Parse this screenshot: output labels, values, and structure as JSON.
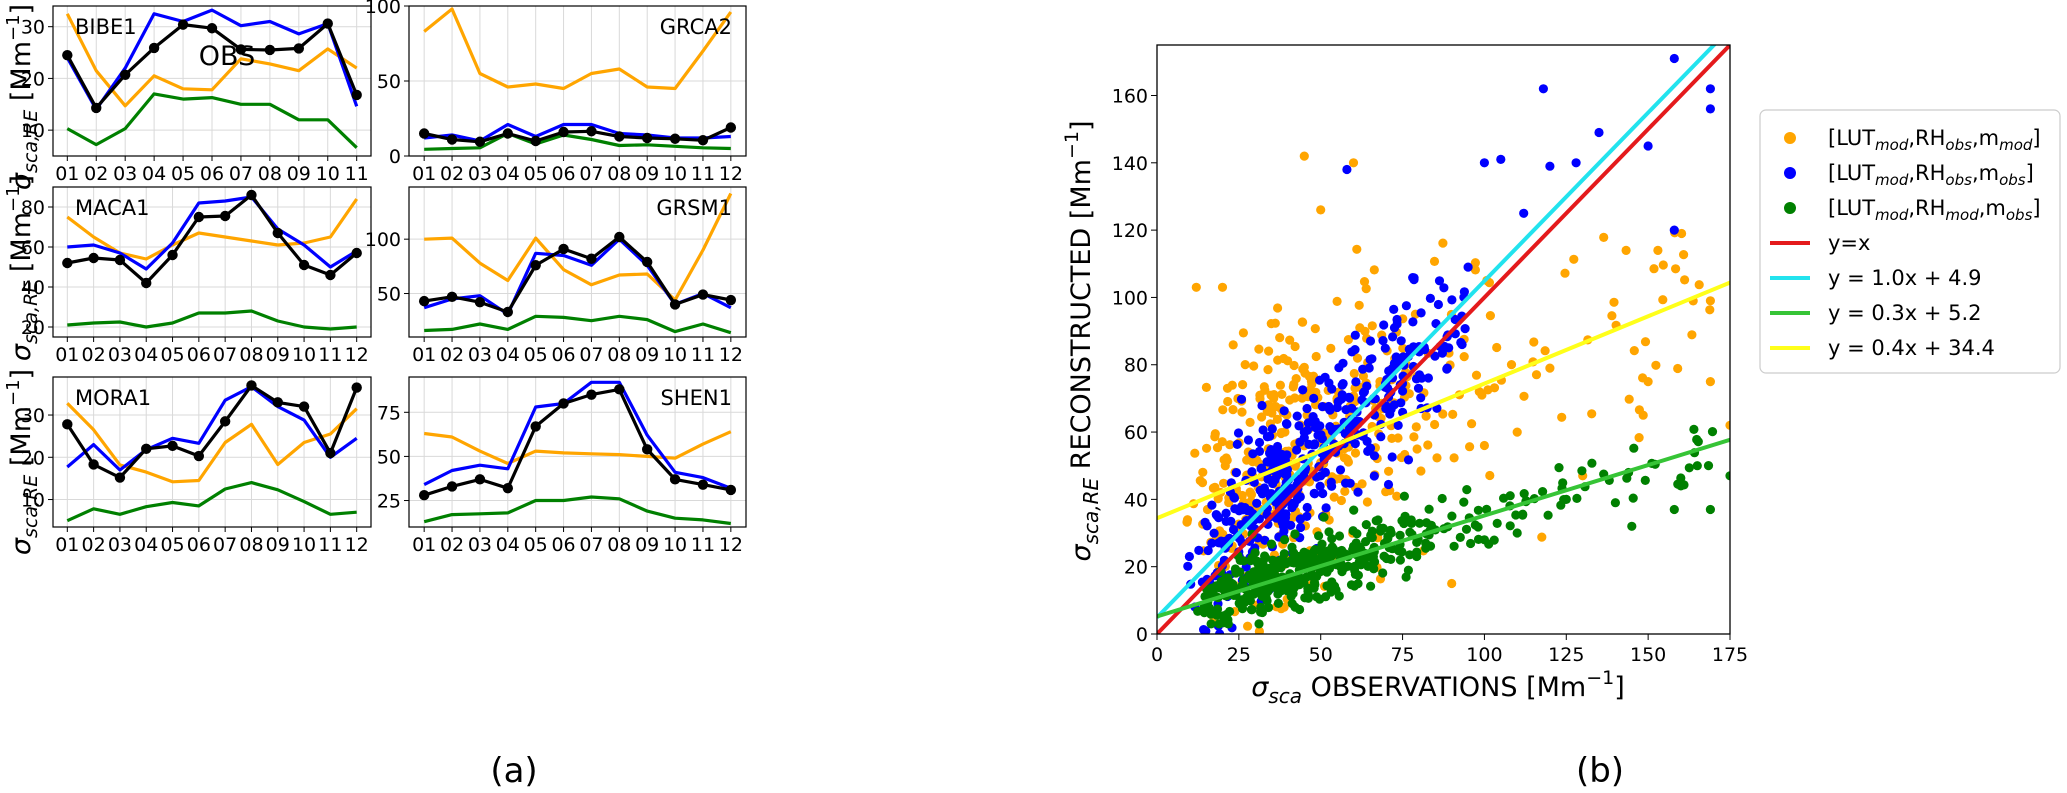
{
  "chart_data": [
    {
      "type": "line",
      "site": "BIBE1",
      "annotation": "OBS",
      "categories": [
        "01",
        "02",
        "03",
        "04",
        "05",
        "06",
        "07",
        "08",
        "09",
        "10",
        "11"
      ],
      "ylim": [
        5,
        34
      ],
      "yticks": [
        10,
        20,
        30
      ],
      "ylabel": "σsca,RE [Mm⁻¹]",
      "series": [
        {
          "name": "[LUTmod,RHobs,mmod]",
          "color": "#ffa500",
          "values": [
            32.5,
            21.5,
            14.7,
            20.5,
            18.0,
            17.8,
            23.8,
            22.8,
            21.5,
            25.7,
            22.0
          ]
        },
        {
          "name": "[LUTmod,RHobs,mobs]",
          "color": "#0000ff",
          "values": [
            24.0,
            14.0,
            22.0,
            32.5,
            31.0,
            33.2,
            30.2,
            31.0,
            28.6,
            30.6,
            14.6
          ]
        },
        {
          "name": "[LUTmod,RHmod,mobs]",
          "color": "#008000",
          "values": [
            10.3,
            7.2,
            10.3,
            17.0,
            16.0,
            16.3,
            15.0,
            15.0,
            12.0,
            12.0,
            6.6
          ]
        },
        {
          "name": "OBS",
          "color": "#000000",
          "values": [
            24.5,
            14.3,
            20.7,
            25.9,
            30.4,
            29.7,
            25.6,
            25.5,
            25.8,
            30.6,
            16.8
          ]
        }
      ]
    },
    {
      "type": "line",
      "site": "GRCA2",
      "categories": [
        "01",
        "02",
        "03",
        "04",
        "05",
        "06",
        "07",
        "08",
        "09",
        "10",
        "11",
        "12"
      ],
      "ylim": [
        0,
        100
      ],
      "yticks": [
        0,
        50,
        100
      ],
      "series": [
        {
          "name": "[LUTmod,RHobs,mmod]",
          "color": "#ffa500",
          "values": [
            83,
            98,
            55,
            46,
            48,
            45,
            55,
            58,
            46,
            45,
            70,
            96
          ]
        },
        {
          "name": "[LUTmod,RHobs,mobs]",
          "color": "#0000ff",
          "values": [
            12,
            14,
            10,
            21,
            13,
            21,
            21,
            15,
            14,
            12,
            12,
            13
          ]
        },
        {
          "name": "[LUTmod,RHmod,mobs]",
          "color": "#008000",
          "values": [
            4.5,
            5,
            5.5,
            15,
            8,
            14,
            11,
            7,
            7.5,
            6.5,
            5.5,
            5
          ]
        },
        {
          "name": "OBS",
          "color": "#000000",
          "values": [
            15,
            11,
            9.5,
            15,
            10,
            16,
            16.5,
            13,
            12,
            11.5,
            10.5,
            19
          ]
        }
      ]
    },
    {
      "type": "line",
      "site": "MACA1",
      "categories": [
        "01",
        "02",
        "03",
        "04",
        "05",
        "06",
        "07",
        "08",
        "09",
        "10",
        "11",
        "12"
      ],
      "ylim": [
        15,
        90
      ],
      "yticks": [
        20,
        40,
        60,
        80
      ],
      "ylabel": "σsca,RE [Mm⁻¹]",
      "series": [
        {
          "name": "[LUTmod,RHobs,mmod]",
          "color": "#ffa500",
          "values": [
            75,
            65,
            57,
            54,
            61,
            67,
            65,
            63,
            61,
            62,
            65,
            84
          ]
        },
        {
          "name": "[LUTmod,RHobs,mobs]",
          "color": "#0000ff",
          "values": [
            60,
            61,
            57,
            49,
            62,
            82,
            83,
            85,
            69,
            61,
            50,
            58
          ]
        },
        {
          "name": "[LUTmod,RHmod,mobs]",
          "color": "#008000",
          "values": [
            21,
            22,
            22.5,
            20,
            22,
            27,
            27,
            28,
            23,
            20,
            19,
            20
          ]
        },
        {
          "name": "OBS",
          "color": "#000000",
          "values": [
            52,
            54.5,
            53.5,
            42,
            56,
            75,
            75.5,
            86,
            67,
            51,
            46,
            57
          ]
        }
      ]
    },
    {
      "type": "line",
      "site": "GRSM1",
      "categories": [
        "01",
        "02",
        "03",
        "04",
        "05",
        "06",
        "07",
        "08",
        "09",
        "10",
        "11",
        "12"
      ],
      "ylim": [
        10,
        148
      ],
      "yticks": [
        50,
        100
      ],
      "series": [
        {
          "name": "[LUTmod,RHobs,mmod]",
          "color": "#ffa500",
          "values": [
            100,
            101,
            78,
            62,
            101,
            72,
            58,
            67,
            68,
            44,
            90,
            142
          ]
        },
        {
          "name": "[LUTmod,RHobs,mobs]",
          "color": "#0000ff",
          "values": [
            37,
            45,
            48,
            31,
            87,
            85,
            76,
            100,
            76,
            40,
            50,
            37
          ]
        },
        {
          "name": "[LUTmod,RHmod,mobs]",
          "color": "#008000",
          "values": [
            16,
            17,
            22,
            17,
            29,
            28,
            25,
            29,
            26,
            15,
            22,
            14
          ]
        },
        {
          "name": "OBS",
          "color": "#000000",
          "values": [
            43,
            47,
            42,
            33,
            76,
            91,
            82,
            102,
            79,
            40,
            49,
            44
          ]
        }
      ]
    },
    {
      "type": "line",
      "site": "MORA1",
      "categories": [
        "01",
        "02",
        "03",
        "04",
        "05",
        "06",
        "07",
        "08",
        "09",
        "10",
        "11",
        "12"
      ],
      "ylim": [
        3.5,
        39
      ],
      "yticks": [
        10,
        20,
        30
      ],
      "ylabel": "σsca,RE [Mm⁻¹]",
      "series": [
        {
          "name": "[LUTmod,RHobs,mmod]",
          "color": "#ffa500",
          "values": [
            32.8,
            26.5,
            18.2,
            16.5,
            14.2,
            14.5,
            23.5,
            27.8,
            18.3,
            23.5,
            25.5,
            31.5
          ]
        },
        {
          "name": "[LUTmod,RHobs,mobs]",
          "color": "#0000ff",
          "values": [
            17.7,
            23.0,
            17.0,
            21.8,
            24.5,
            23.3,
            33.5,
            36.7,
            32.0,
            28.8,
            20.0,
            24.5
          ]
        },
        {
          "name": "[LUTmod,RHmod,mobs]",
          "color": "#008000",
          "values": [
            5.0,
            7.8,
            6.5,
            8.3,
            9.3,
            8.5,
            12.5,
            14.0,
            12.3,
            9.5,
            6.5,
            7.0
          ]
        },
        {
          "name": "OBS",
          "color": "#000000",
          "values": [
            27.8,
            18.3,
            15.2,
            22.0,
            22.7,
            20.3,
            28.5,
            37.0,
            33.0,
            32.0,
            21.0,
            36.5
          ]
        }
      ]
    },
    {
      "type": "line",
      "site": "SHEN1",
      "categories": [
        "01",
        "02",
        "03",
        "04",
        "05",
        "06",
        "07",
        "08",
        "09",
        "10",
        "11",
        "12"
      ],
      "ylim": [
        10,
        95
      ],
      "yticks": [
        25,
        50,
        75
      ],
      "series": [
        {
          "name": "[LUTmod,RHobs,mmod]",
          "color": "#ffa500",
          "values": [
            63,
            61,
            53,
            46,
            53,
            52,
            51.5,
            51,
            50,
            49,
            57,
            64
          ]
        },
        {
          "name": "[LUTmod,RHobs,mobs]",
          "color": "#0000ff",
          "values": [
            34,
            42,
            45,
            43,
            78,
            80,
            92,
            92,
            62,
            41,
            38,
            32
          ]
        },
        {
          "name": "[LUTmod,RHmod,mobs]",
          "color": "#008000",
          "values": [
            13,
            17,
            17.5,
            18,
            25,
            25,
            27,
            26,
            19,
            15,
            14,
            12
          ]
        },
        {
          "name": "OBS",
          "color": "#000000",
          "values": [
            28,
            33,
            37,
            32,
            67,
            80,
            85,
            88,
            54,
            37,
            34,
            31
          ]
        }
      ]
    },
    {
      "type": "scatter",
      "panel": "b",
      "xlabel": "σsca OBSERVATIONS [Mm⁻¹]",
      "ylabel": "σsca,RE RECONSTRUCTED [Mm⁻¹]",
      "xlim": [
        0,
        175
      ],
      "ylim": [
        0,
        175
      ],
      "xticks": [
        0,
        25,
        50,
        75,
        100,
        125,
        150,
        175
      ],
      "yticks": [
        0,
        20,
        40,
        60,
        80,
        100,
        120,
        140,
        160
      ],
      "series": [
        {
          "name": "[LUTmod,RHobs,mmod]",
          "color": "#ffa500",
          "slope": 0.4,
          "intercept": 34.4,
          "spread": 18,
          "count": 420,
          "points": [
            [
              12,
              103
            ],
            [
              20,
              103
            ],
            [
              45,
              142
            ],
            [
              60,
              140
            ],
            [
              50,
              126
            ],
            [
              120,
              79
            ],
            [
              169,
              99
            ],
            [
              169,
              75
            ],
            [
              175,
              62
            ],
            [
              150,
              75
            ],
            [
              110,
              60
            ],
            [
              130,
              47
            ],
            [
              90,
              15
            ],
            [
              100,
              56
            ]
          ]
        },
        {
          "name": "[LUTmod,RHobs,mobs]",
          "color": "#0000ff",
          "slope": 1.0,
          "intercept": 4.9,
          "spread": 12,
          "count": 420,
          "points": [
            [
              118,
              162
            ],
            [
              158,
              171
            ],
            [
              169,
              162
            ],
            [
              169,
              156
            ],
            [
              158,
              120
            ],
            [
              150,
              145
            ],
            [
              135,
              149
            ],
            [
              128,
              140
            ],
            [
              120,
              139
            ],
            [
              112,
              125
            ],
            [
              105,
              141
            ],
            [
              100,
              140
            ],
            [
              58,
              138
            ],
            [
              95,
              109
            ]
          ]
        },
        {
          "name": "[LUTmod,RHmod,mobs]",
          "color": "#008000",
          "slope": 0.3,
          "intercept": 5.2,
          "spread": 5,
          "count": 420,
          "points": [
            [
              160,
              44
            ],
            [
              165,
              50
            ],
            [
              169,
              37
            ],
            [
              175,
              47
            ],
            [
              158,
              37
            ],
            [
              145,
              32
            ],
            [
              140,
              39
            ],
            [
              125,
              40
            ],
            [
              110,
              30
            ],
            [
              100,
              28
            ]
          ]
        }
      ],
      "fits": [
        {
          "label": "y=x",
          "color": "#e41a1c",
          "slope": 1.0,
          "intercept": 0
        },
        {
          "label": "y = 1.0x + 4.9",
          "color": "#22e3ee",
          "slope": 1.0,
          "intercept": 4.9
        },
        {
          "label": "y = 0.3x + 5.2",
          "color": "#36c436",
          "slope": 0.3,
          "intercept": 5.2
        },
        {
          "label": "y = 0.4x + 34.4",
          "color": "#ffff1a",
          "slope": 0.4,
          "intercept": 34.4
        }
      ]
    }
  ],
  "legend": [
    {
      "kind": "dot",
      "color": "#ffa500",
      "base": "[LUT",
      "s1": "mod",
      "m1": ",RH",
      "s2": "obs",
      "m2": ",m",
      "s3": "mod",
      "end": "]"
    },
    {
      "kind": "dot",
      "color": "#0000ff",
      "base": "[LUT",
      "s1": "mod",
      "m1": ",RH",
      "s2": "obs",
      "m2": ",m",
      "s3": "obs",
      "end": "]"
    },
    {
      "kind": "dot",
      "color": "#008000",
      "base": "[LUT",
      "s1": "mod",
      "m1": ",RH",
      "s2": "mod",
      "m2": ",m",
      "s3": "obs",
      "end": "]"
    },
    {
      "kind": "line",
      "color": "#e41a1c",
      "text": "y=x"
    },
    {
      "kind": "line",
      "color": "#22e3ee",
      "text": "y = 1.0x + 4.9"
    },
    {
      "kind": "line",
      "color": "#36c436",
      "text": "y = 0.3x + 5.2"
    },
    {
      "kind": "line",
      "color": "#ffff1a",
      "text": "y = 0.4x + 34.4"
    }
  ],
  "labels": {
    "caption_a": "(a)",
    "caption_b": "(b)",
    "ylabel_a_greek": "σ",
    "ylabel_a_sub": "sca,RE",
    "ylabel_a_unit": " [Mm",
    "ylabel_a_exp": "−1",
    "ylabel_a_close": "]",
    "ylabel_b_greek": "σ",
    "ylabel_b_sub": "sca,RE",
    "ylabel_b_rest": " RECONSTRUCTED [Mm",
    "ylabel_b_exp": "−1",
    "ylabel_b_close": "]",
    "xlabel_b_greek": "σ",
    "xlabel_b_sub": "sca",
    "xlabel_b_rest": " OBSERVATIONS [Mm",
    "xlabel_b_exp": "−1",
    "xlabel_b_close": "]"
  }
}
